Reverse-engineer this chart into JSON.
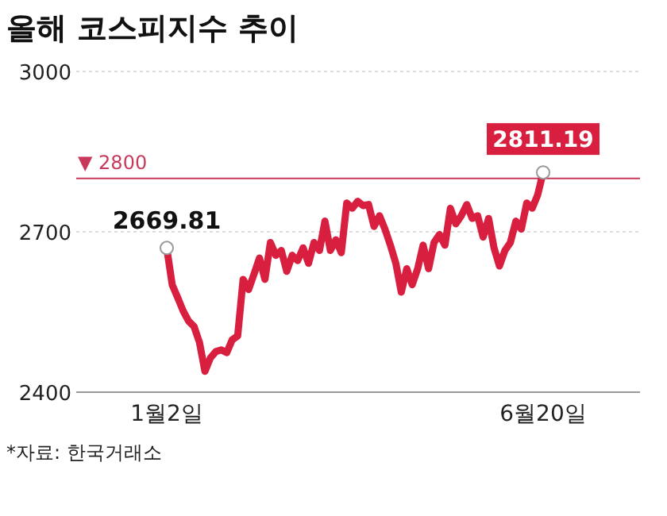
{
  "chart_data": {
    "type": "line",
    "title": "올해 코스피지수 추이",
    "categories": [
      "1월2일",
      null,
      null,
      null,
      null,
      null,
      null,
      null,
      null,
      null,
      null,
      null,
      null,
      null,
      null,
      null,
      null,
      null,
      null,
      null,
      null,
      null,
      null,
      null,
      null,
      null,
      null,
      null,
      null,
      null,
      null,
      null,
      null,
      null,
      null,
      null,
      null,
      null,
      null,
      null,
      null,
      null,
      null,
      null,
      null,
      null,
      null,
      null,
      null,
      null,
      null,
      null,
      null,
      null,
      null,
      null,
      null,
      null,
      null,
      null,
      null,
      null,
      null,
      null,
      null,
      null,
      null,
      null,
      null,
      "6월20일"
    ],
    "series": [
      {
        "color": "#d91f3f",
        "values": [
          2669.81,
          2601,
          2577,
          2552,
          2533,
          2523,
          2493,
          2439,
          2464,
          2476,
          2479,
          2474,
          2498,
          2505,
          2611,
          2592,
          2621,
          2651,
          2611,
          2680,
          2656,
          2665,
          2626,
          2656,
          2646,
          2670,
          2641,
          2680,
          2665,
          2720,
          2665,
          2685,
          2661,
          2754,
          2744,
          2757,
          2749,
          2751,
          2710,
          2730,
          2705,
          2675,
          2641,
          2587,
          2631,
          2601,
          2631,
          2675,
          2631,
          2680,
          2695,
          2675,
          2744,
          2715,
          2730,
          2751,
          2725,
          2730,
          2690,
          2725,
          2670,
          2636,
          2665,
          2680,
          2720,
          2705,
          2754,
          2744,
          2769,
          2811.19
        ],
        "value_labels": [
          "2669.81",
          null,
          null,
          null,
          null,
          null,
          null,
          null,
          null,
          null,
          null,
          null,
          null,
          null,
          null,
          null,
          null,
          null,
          null,
          null,
          null,
          null,
          null,
          null,
          null,
          null,
          null,
          null,
          null,
          null,
          null,
          null,
          null,
          null,
          null,
          null,
          null,
          null,
          null,
          null,
          null,
          null,
          null,
          null,
          null,
          null,
          null,
          null,
          null,
          null,
          null,
          null,
          null,
          null,
          null,
          null,
          null,
          null,
          null,
          null,
          null,
          null,
          null,
          null,
          null,
          null,
          null,
          null,
          null,
          "2811.19"
        ]
      }
    ],
    "ylim": [
      2400,
      3000
    ],
    "yticks": [
      2400,
      2700,
      3000
    ],
    "grid": "y",
    "ref_lines": [
      {
        "axis": "y",
        "value": 2800,
        "label": "▼ 2800",
        "color": "#c8385a"
      }
    ],
    "annotations": [
      "*자료: 한국거래소"
    ],
    "line_style": "solid"
  }
}
